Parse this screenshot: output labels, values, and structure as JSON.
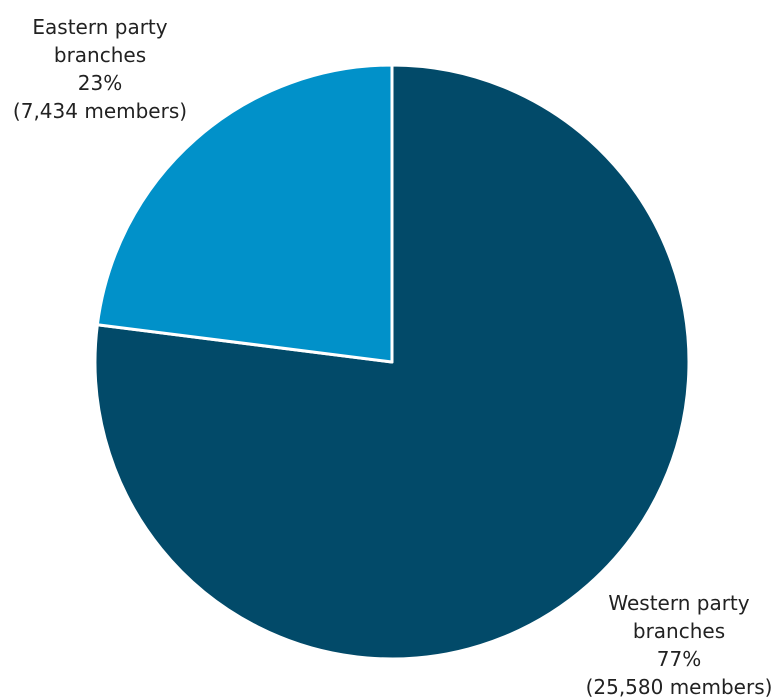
{
  "chart_data": {
    "type": "pie",
    "title": "",
    "slices": [
      {
        "name": "Western party branches",
        "label_lines": [
          "Western party",
          "branches",
          "77%",
          "(25,580 members)"
        ],
        "percent": 77,
        "members": 25580,
        "color": "#024a69"
      },
      {
        "name": "Eastern party branches",
        "label_lines": [
          "Eastern party",
          "branches",
          "23%",
          "(7,434 members)"
        ],
        "percent": 23,
        "members": 7434,
        "color": "#0191c9"
      }
    ],
    "start_angle_deg": 0,
    "direction": "clockwise",
    "separator_color": "#ffffff",
    "legend": "none"
  }
}
